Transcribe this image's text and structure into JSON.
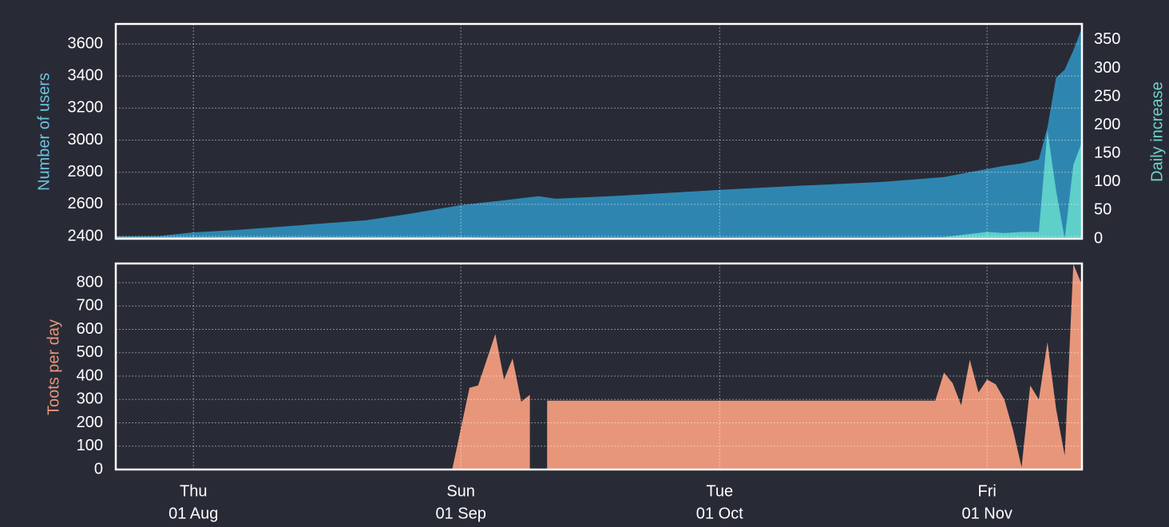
{
  "chart_data": [
    {
      "type": "area",
      "ylabel": "Number of users",
      "y2label": "Daily increase",
      "x": [
        "07-23",
        "07-28",
        "08-01",
        "08-06",
        "08-11",
        "08-16",
        "08-21",
        "08-26",
        "09-01",
        "09-06",
        "09-10",
        "09-12",
        "09-20",
        "10-01",
        "10-10",
        "10-20",
        "10-27",
        "11-01",
        "11-03",
        "11-05",
        "11-07",
        "11-08",
        "11-09",
        "11-10",
        "11-11",
        "11-12"
      ],
      "series": [
        {
          "name": "Number of users",
          "color": "#2e86b0",
          "axis": "y",
          "values": [
            2400,
            2402,
            2425,
            2440,
            2460,
            2480,
            2500,
            2540,
            2595,
            2625,
            2650,
            2635,
            2655,
            2690,
            2715,
            2740,
            2770,
            2820,
            2840,
            2855,
            2880,
            3080,
            3390,
            3440,
            3560,
            3700
          ]
        },
        {
          "name": "Daily increase",
          "color": "#5ecfc9",
          "axis": "y2",
          "values": [
            3,
            3,
            3,
            3,
            3,
            3,
            3,
            3,
            3,
            2,
            1,
            1,
            2,
            2,
            2,
            2,
            3,
            12,
            10,
            12,
            12,
            190,
            85,
            0,
            130,
            170
          ]
        }
      ],
      "xlim": [
        "07-23",
        "11-12"
      ],
      "ylim": [
        2385,
        3725
      ],
      "yticks": [
        2400,
        2600,
        2800,
        3000,
        3200,
        3400,
        3600
      ],
      "y2lim": [
        0,
        378
      ],
      "y2ticks": [
        0,
        50,
        100,
        150,
        200,
        250,
        300,
        350
      ],
      "grid": true
    },
    {
      "type": "area",
      "ylabel": "Toots per day",
      "x": [
        "07-23",
        "08-31",
        "09-02",
        "09-03",
        "09-05",
        "09-06",
        "09-07",
        "09-08",
        "09-09",
        "09-10",
        "09-11",
        "10-26",
        "10-27",
        "10-28",
        "10-29",
        "10-30",
        "10-31",
        "11-01",
        "11-02",
        "11-03",
        "11-04",
        "11-05",
        "11-06",
        "11-07",
        "11-08",
        "11-09",
        "11-10",
        "11-11",
        "11-12"
      ],
      "series": [
        {
          "name": "Toots per day",
          "color": "#e8967a",
          "axis": "y",
          "values": [
            0,
            0,
            350,
            360,
            580,
            385,
            475,
            290,
            320,
            null,
            295,
            295,
            415,
            370,
            275,
            470,
            330,
            385,
            365,
            300,
            170,
            10,
            360,
            300,
            545,
            260,
            60,
            880,
            790
          ]
        }
      ],
      "xlim": [
        "07-23",
        "11-12"
      ],
      "xticks": [
        {
          "value": "08-01",
          "label": [
            "Thu",
            "01 Aug"
          ]
        },
        {
          "value": "09-01",
          "label": [
            "Sun",
            "01 Sep"
          ]
        },
        {
          "value": "10-01",
          "label": [
            "Tue",
            "01 Oct"
          ]
        },
        {
          "value": "11-01",
          "label": [
            "Fri",
            "01 Nov"
          ]
        }
      ],
      "ylim": [
        0,
        882
      ],
      "yticks": [
        0,
        100,
        200,
        300,
        400,
        500,
        600,
        700,
        800
      ],
      "grid": true
    }
  ]
}
